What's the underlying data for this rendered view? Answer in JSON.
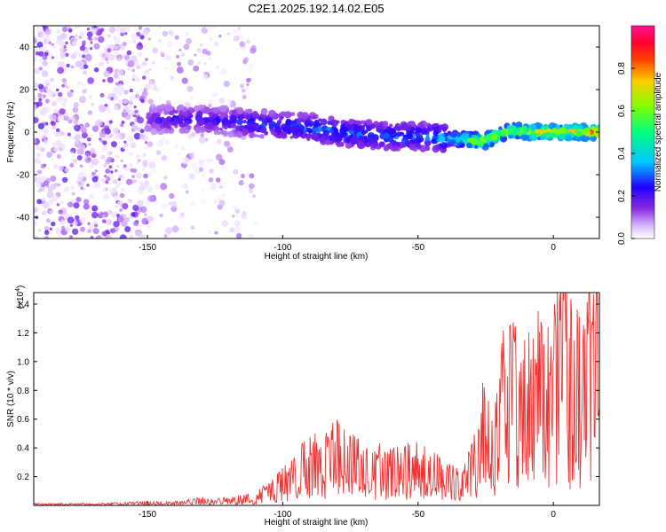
{
  "figure_title": "C2E1.2025.192.14.02.E05",
  "chart_data": [
    {
      "type": "heatmap",
      "title": "",
      "xlabel": "Height of straight line (km)",
      "ylabel": "Frequency (Hz)",
      "xlim": [
        -192,
        17
      ],
      "ylim": [
        -50,
        50
      ],
      "x_ticks": [
        -150,
        -100,
        -50,
        0
      ],
      "x_tick_labels": [
        "-150",
        "-100",
        "-50",
        "0"
      ],
      "y_ticks": [
        -40,
        -20,
        0,
        20,
        40
      ],
      "y_tick_labels": [
        "-40",
        "-20",
        "0",
        "20",
        "40"
      ],
      "colorbar": {
        "label": "Normalized spectral amplitude",
        "range": [
          0,
          1
        ],
        "ticks": [
          0.0,
          0.2,
          0.4,
          0.6,
          0.8
        ],
        "tick_labels": [
          "0.0",
          "0.2",
          "0.4",
          "0.6",
          "0.8"
        ],
        "colormap": [
          "#ffffff",
          "#b070ff",
          "#6a00ff",
          "#0000ff",
          "#00c8ff",
          "#00ff66",
          "#c8ff00",
          "#ff9900",
          "#ff0000",
          "#ff1493"
        ]
      },
      "ridge": {
        "description": "frequency of strongest signal band vs height",
        "x": [
          -150,
          -140,
          -130,
          -120,
          -110,
          -100,
          -90,
          -80,
          -70,
          -60,
          -50,
          -40,
          -35,
          -30,
          -25,
          -20,
          -15,
          -10,
          -5,
          0,
          5,
          10,
          15
        ],
        "freq": [
          6,
          6,
          6,
          5,
          4,
          3,
          2,
          0,
          -1,
          -2,
          -2,
          -3,
          -3,
          -4,
          -4,
          -1,
          1,
          0,
          0,
          0,
          0,
          0,
          0
        ],
        "amplitude": [
          0.2,
          0.25,
          0.25,
          0.25,
          0.3,
          0.3,
          0.35,
          0.35,
          0.35,
          0.35,
          0.35,
          0.4,
          0.55,
          0.75,
          0.8,
          0.7,
          0.75,
          0.8,
          0.85,
          0.85,
          0.85,
          0.85,
          0.9
        ]
      },
      "noise_region": {
        "x": [
          -192,
          -110
        ],
        "freq": [
          -50,
          50
        ],
        "amplitude": [
          0.02,
          0.2
        ]
      }
    },
    {
      "type": "line",
      "title": "",
      "xlabel": "Height of straight line (km)",
      "ylabel": "SNR (10 * v/v)",
      "y_multiplier_label": "(x10",
      "y_multiplier_exp": "4",
      "y_multiplier_close": ")",
      "xlim": [
        -192,
        17
      ],
      "ylim": [
        0,
        1.48
      ],
      "x_ticks": [
        -150,
        -100,
        -50,
        0
      ],
      "x_tick_labels": [
        "-150",
        "-100",
        "-50",
        "0"
      ],
      "y_ticks": [
        0.2,
        0.4,
        0.6,
        0.8,
        1.0,
        1.2,
        1.4
      ],
      "y_tick_labels": [
        "0.2",
        "0.4",
        "0.6",
        "0.8",
        "1.0",
        "1.2",
        "1.4"
      ],
      "series": [
        {
          "color": "#ee3333",
          "x": [
            -192,
            -170,
            -150,
            -140,
            -130,
            -125,
            -120,
            -110,
            -105,
            -100,
            -95,
            -90,
            -85,
            -80,
            -75,
            -70,
            -65,
            -60,
            -55,
            -50,
            -45,
            -40,
            -35,
            -30,
            -27,
            -25,
            -22,
            -20,
            -18,
            -15,
            -12,
            -10,
            -8,
            -5,
            -3,
            0,
            3,
            5,
            8,
            10,
            12,
            15,
            17
          ],
          "y": [
            0.01,
            0.01,
            0.02,
            0.02,
            0.04,
            0.03,
            0.04,
            0.06,
            0.12,
            0.18,
            0.25,
            0.35,
            0.38,
            0.45,
            0.35,
            0.3,
            0.3,
            0.28,
            0.3,
            0.3,
            0.26,
            0.22,
            0.18,
            0.3,
            0.5,
            0.8,
            0.5,
            0.6,
            0.95,
            0.9,
            0.7,
            0.85,
            0.8,
            1.05,
            0.8,
            0.95,
            1.3,
            1.05,
            0.9,
            1.0,
            1.2,
            1.0,
            1.1
          ]
        }
      ]
    }
  ]
}
